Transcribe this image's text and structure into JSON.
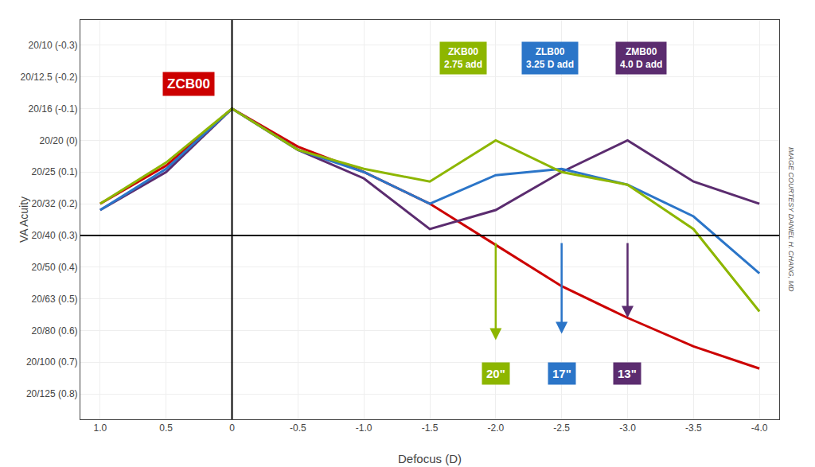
{
  "chart_data": {
    "type": "line",
    "x_label": "Defocus (D)",
    "y_label": "VA Acuity",
    "x": [
      1.0,
      0.5,
      0.0,
      -0.5,
      -1.0,
      -1.5,
      -2.0,
      -2.5,
      -3.0,
      -3.5,
      -4.0
    ],
    "series": [
      {
        "name": "ZCB00",
        "color": "#CC0000",
        "values": [
          0.2,
          0.08,
          -0.1,
          0.02,
          0.1,
          0.2,
          0.33,
          0.46,
          0.56,
          0.65,
          0.72
        ]
      },
      {
        "name": "ZMB00",
        "color": "#5B2C6F",
        "values": [
          0.22,
          0.1,
          -0.1,
          0.03,
          0.12,
          0.28,
          0.22,
          0.1,
          0.0,
          0.13,
          0.2
        ]
      },
      {
        "name": "ZLB00",
        "color": "#2B75C8",
        "values": [
          0.22,
          0.09,
          -0.1,
          0.03,
          0.1,
          0.2,
          0.11,
          0.09,
          0.14,
          0.24,
          0.42
        ]
      },
      {
        "name": "ZKB00",
        "color": "#8DB600",
        "values": [
          0.2,
          0.07,
          -0.1,
          0.03,
          0.09,
          0.13,
          0.0,
          0.1,
          0.14,
          0.28,
          0.54
        ]
      }
    ],
    "xlim": [
      1.15,
      -4.15
    ],
    "ylim": [
      0.88,
      -0.38
    ],
    "xticks": [
      {
        "value": 1.0,
        "label": "1.0"
      },
      0.5,
      0,
      -0.5,
      {
        "value": -1.0,
        "label": "-1.0"
      },
      -1.5,
      {
        "value": -2.0,
        "label": "-2.0"
      },
      -2.5,
      {
        "value": -3.0,
        "label": "-3.0"
      },
      -3.5,
      {
        "value": -4.0,
        "label": "-4.0"
      }
    ],
    "yticks": [
      {
        "value": -0.3,
        "label": "20/10 (-0.3)"
      },
      {
        "value": -0.2,
        "label": "20/12.5 (-0.2)"
      },
      {
        "value": -0.1,
        "label": "20/16 (-0.1)"
      },
      {
        "value": 0.0,
        "label": "20/20 (0)"
      },
      {
        "value": 0.1,
        "label": "20/25 (0.1)"
      },
      {
        "value": 0.2,
        "label": "20/32 (0.2)"
      },
      {
        "value": 0.3,
        "label": "20/40 (0.3)"
      },
      {
        "value": 0.4,
        "label": "20/50 (0.4)"
      },
      {
        "value": 0.5,
        "label": "20/63 (0.5)"
      },
      {
        "value": 0.6,
        "label": "20/80 (0.6)"
      },
      {
        "value": 0.7,
        "label": "20/100 (0.7)"
      },
      {
        "value": 0.8,
        "label": "20/125 (0.8)"
      }
    ],
    "grid": true,
    "legend": "none",
    "reference_lines": [
      {
        "axis": "y",
        "value": 0.3
      },
      {
        "axis": "x",
        "value": 0.0
      }
    ],
    "legend_boxes": [
      {
        "text": "ZCB00",
        "color": "#CC0000"
      },
      {
        "text": "ZKB00\n2.75 add",
        "color": "#8DB600"
      },
      {
        "text": "ZLB00\n3.25 D add",
        "color": "#2B75C8"
      },
      {
        "text": "ZMB00\n4.0 D add",
        "color": "#5B2C6F"
      }
    ],
    "arrows": [
      {
        "x": -2.0,
        "y_start": 0.32,
        "y_end": 0.63,
        "color": "#8DB600"
      },
      {
        "x": -2.5,
        "y_start": 0.32,
        "y_end": 0.61,
        "color": "#2B75C8"
      },
      {
        "x": -3.0,
        "y_start": 0.32,
        "y_end": 0.56,
        "color": "#5B2C6F"
      }
    ],
    "arrow_labels": [
      {
        "text": "20\"",
        "x": -2.0,
        "y": 0.735,
        "color": "#8DB600"
      },
      {
        "text": "17\"",
        "x": -2.5,
        "y": 0.735,
        "color": "#2B75C8"
      },
      {
        "text": "13\"",
        "x": -3.0,
        "y": 0.735,
        "color": "#5B2C6F"
      }
    ],
    "side_text": "IMAGE COURTESY DANIEL H. CHANG, MD"
  }
}
